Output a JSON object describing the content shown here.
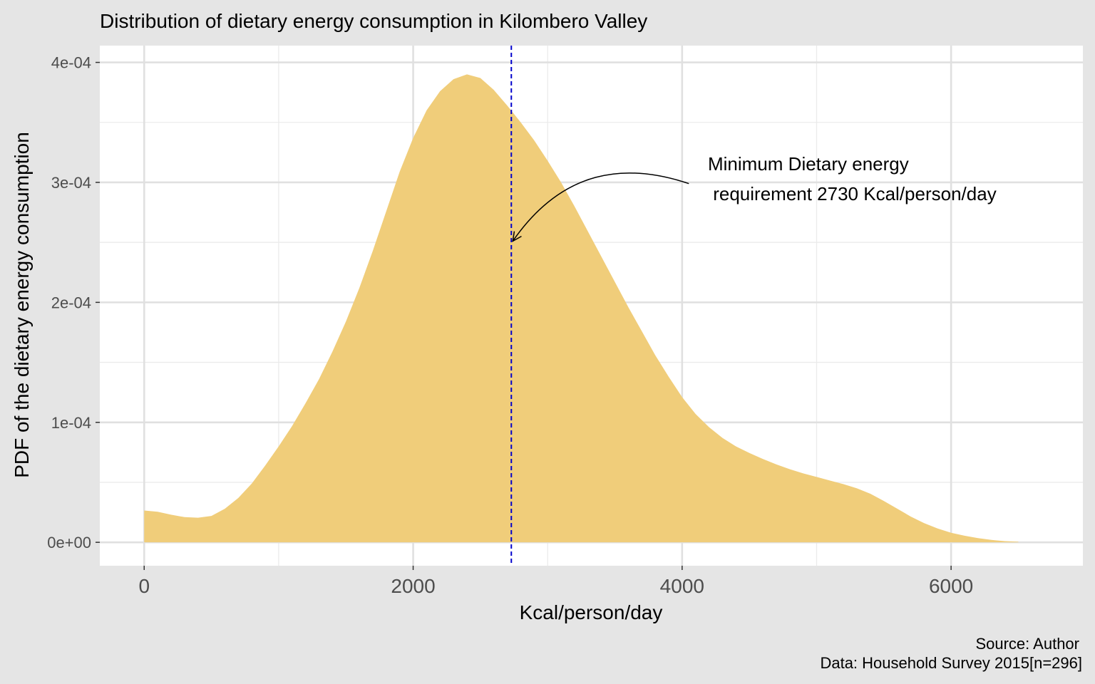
{
  "chart_data": {
    "type": "area",
    "title": "Distribution of dietary energy consumption in Kilombero Valley",
    "xlabel": "Kcal/person/day",
    "ylabel": "PDF of the dietary energy consumption",
    "xlim": [
      -330,
      6980
    ],
    "ylim": [
      -1.95e-05,
      0.000414
    ],
    "x_ticks": [
      0,
      2000,
      4000,
      6000
    ],
    "x_tick_labels": [
      "0",
      "2000",
      "4000",
      "6000"
    ],
    "y_ticks": [
      0,
      0.0001,
      0.0002,
      0.0003,
      0.0004
    ],
    "y_tick_labels": [
      "0e+00",
      "1e-04",
      "2e-04",
      "3e-04",
      "4e-04"
    ],
    "grid": true,
    "fill_color": "#f0cd7a",
    "reference_line_color": "#0000cc",
    "series": [
      {
        "x": [
          0,
          100,
          200,
          300,
          400,
          500,
          600,
          700,
          800,
          900,
          1000,
          1100,
          1200,
          1300,
          1400,
          1500,
          1600,
          1700,
          1800,
          1900,
          2000,
          2100,
          2200,
          2300,
          2400,
          2500,
          2600,
          2700,
          2800,
          2900,
          3000,
          3100,
          3200,
          3300,
          3400,
          3500,
          3600,
          3700,
          3800,
          3900,
          4000,
          4100,
          4200,
          4300,
          4400,
          4500,
          4600,
          4700,
          4800,
          4900,
          5000,
          5100,
          5200,
          5300,
          5400,
          5500,
          5600,
          5700,
          5800,
          5900,
          6000,
          6100,
          6200,
          6300,
          6400,
          6500
        ],
        "values": [
          2.65e-05,
          2.55e-05,
          2.3e-05,
          2.1e-05,
          2.05e-05,
          2.2e-05,
          2.8e-05,
          3.7e-05,
          4.9e-05,
          6.4e-05,
          8e-05,
          9.7e-05,
          0.000116,
          0.000136,
          0.000159,
          0.000184,
          0.000212,
          0.000243,
          0.000276,
          0.000309,
          0.000337,
          0.00036,
          0.000376,
          0.000386,
          0.00039,
          0.000387,
          0.000377,
          0.000364,
          0.00035,
          0.000335,
          0.000318,
          0.0003,
          0.00028,
          0.000259,
          0.000238,
          0.000217,
          0.000196,
          0.000176,
          0.000156,
          0.000138,
          0.000121,
          0.000107,
          9.6e-05,
          8.7e-05,
          8e-05,
          7.45e-05,
          6.95e-05,
          6.5e-05,
          6.1e-05,
          5.75e-05,
          5.45e-05,
          5.15e-05,
          4.85e-05,
          4.5e-05,
          4.05e-05,
          3.45e-05,
          2.8e-05,
          2.15e-05,
          1.6e-05,
          1.15e-05,
          8e-06,
          5.5e-06,
          3.5e-06,
          2e-06,
          1e-06,
          5e-07
        ]
      }
    ],
    "reference_line": {
      "x": 2730
    },
    "annotation": {
      "line1": "Minimum Dietary energy",
      "line2": " requirement 2730 Kcal/person/day",
      "arrow_from_x": 4050,
      "arrow_from_y": 0.000299,
      "arrow_to_x": 2730,
      "arrow_to_y": 0.000251
    },
    "caption": {
      "line1": "Source: Author",
      "line2": "Data: Household Survey 2015[n=296]"
    }
  }
}
